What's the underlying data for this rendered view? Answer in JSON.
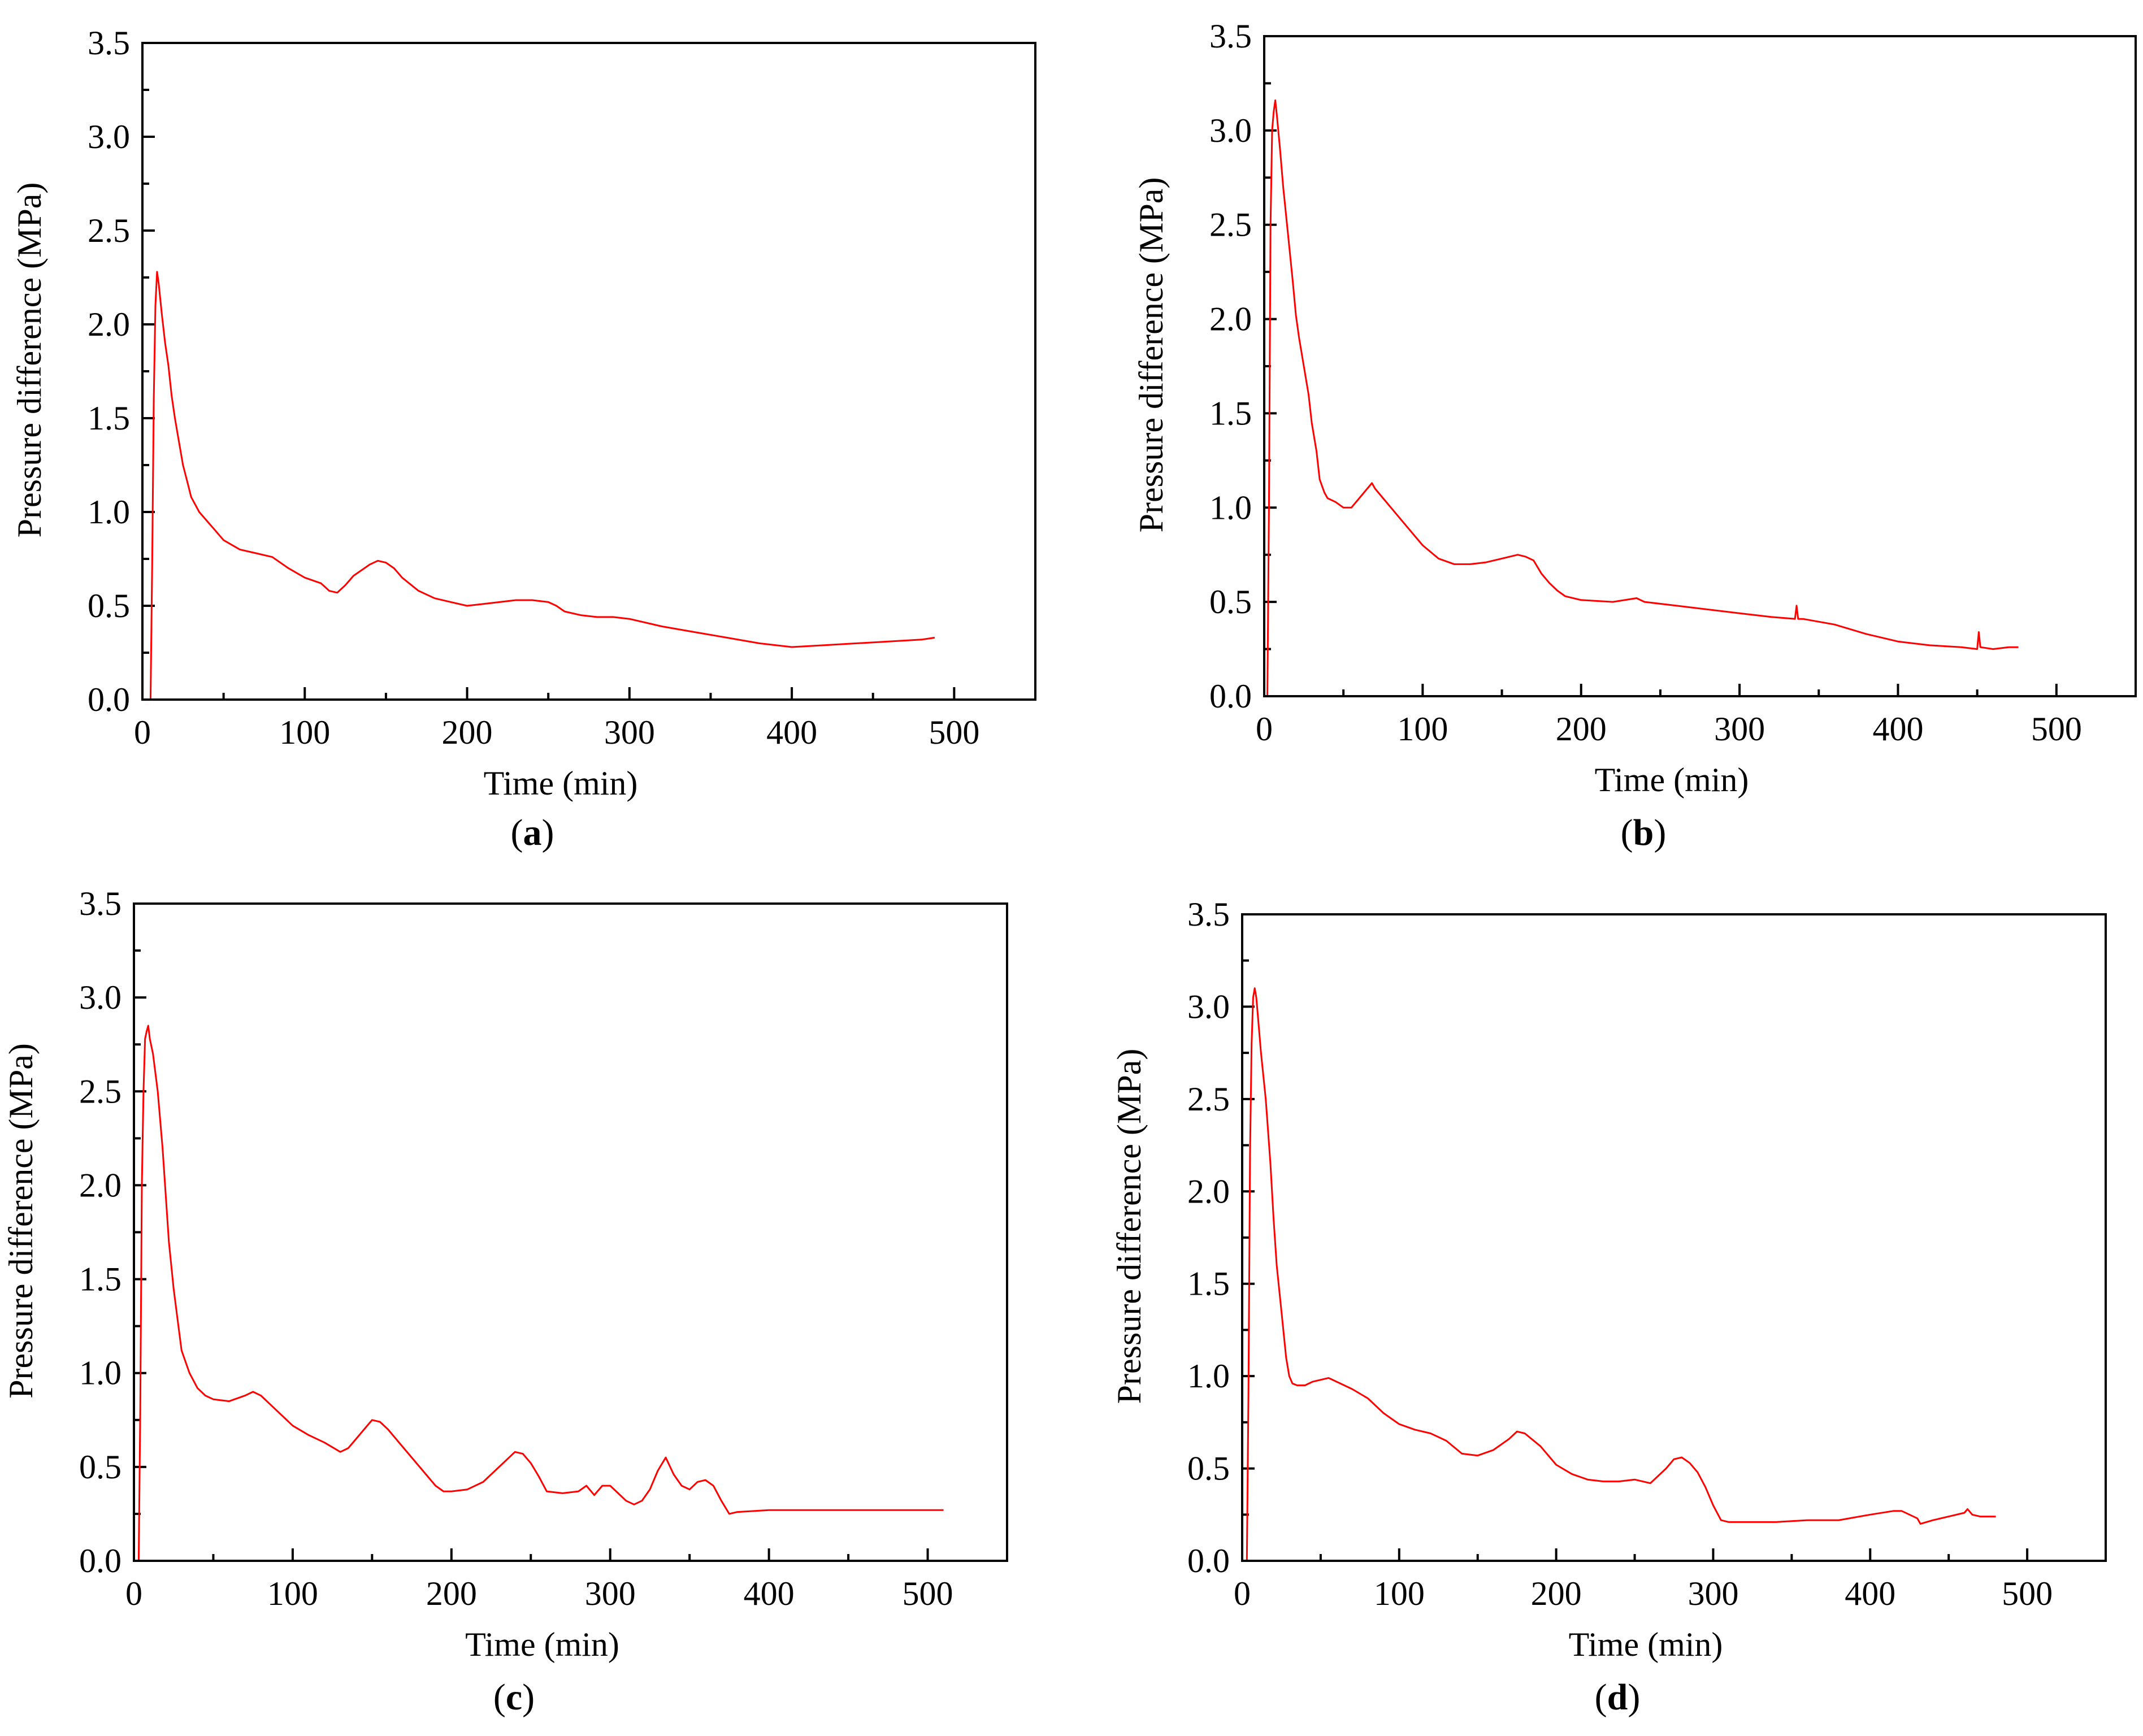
{
  "colors": {
    "series": "#ff0000",
    "axis": "#000000",
    "background": "#ffffff"
  },
  "chart_data": [
    {
      "type": "line",
      "panel_label": "a",
      "xlabel": "Time (min)",
      "ylabel": "Pressure difference (MPa)",
      "xlim": [
        0,
        550
      ],
      "ylim": [
        0,
        3.5
      ],
      "xticks": [
        0,
        100,
        200,
        300,
        400,
        500
      ],
      "yticks": [
        0.0,
        0.5,
        1.0,
        1.5,
        2.0,
        2.5,
        3.0,
        3.5
      ],
      "xtick_labels": [
        "0",
        "100",
        "200",
        "300",
        "400",
        "500"
      ],
      "ytick_labels": [
        "0.0",
        "0.5",
        "1.0",
        "1.5",
        "2.0",
        "2.5",
        "3.0",
        "3.5"
      ],
      "series": [
        {
          "name": "Pressure difference",
          "x": [
            5,
            6,
            7,
            8,
            9,
            10,
            12,
            14,
            16,
            18,
            20,
            22,
            25,
            28,
            30,
            35,
            40,
            45,
            50,
            60,
            70,
            80,
            90,
            100,
            110,
            115,
            120,
            125,
            130,
            140,
            145,
            150,
            155,
            160,
            170,
            180,
            190,
            200,
            210,
            220,
            230,
            240,
            250,
            255,
            260,
            270,
            280,
            290,
            300,
            320,
            340,
            360,
            380,
            400,
            420,
            440,
            460,
            480,
            488
          ],
          "y": [
            0.0,
            0.7,
            1.6,
            2.1,
            2.28,
            2.22,
            2.05,
            1.9,
            1.78,
            1.62,
            1.5,
            1.4,
            1.25,
            1.15,
            1.08,
            1.0,
            0.95,
            0.9,
            0.85,
            0.8,
            0.78,
            0.76,
            0.7,
            0.65,
            0.62,
            0.58,
            0.57,
            0.61,
            0.66,
            0.72,
            0.74,
            0.73,
            0.7,
            0.65,
            0.58,
            0.54,
            0.52,
            0.5,
            0.51,
            0.52,
            0.53,
            0.53,
            0.52,
            0.5,
            0.47,
            0.45,
            0.44,
            0.44,
            0.43,
            0.39,
            0.36,
            0.33,
            0.3,
            0.28,
            0.29,
            0.3,
            0.31,
            0.32,
            0.33
          ]
        }
      ]
    },
    {
      "type": "line",
      "panel_label": "b",
      "xlabel": "Time (min)",
      "ylabel": "Pressure difference (MPa)",
      "xlim": [
        0,
        550
      ],
      "ylim": [
        0,
        3.5
      ],
      "xticks": [
        0,
        100,
        200,
        300,
        400,
        500
      ],
      "yticks": [
        0.0,
        0.5,
        1.0,
        1.5,
        2.0,
        2.5,
        3.0,
        3.5
      ],
      "xtick_labels": [
        "0",
        "100",
        "200",
        "300",
        "400",
        "500"
      ],
      "ytick_labels": [
        "0.0",
        "0.5",
        "1.0",
        "1.5",
        "2.0",
        "2.5",
        "3.0",
        "3.5"
      ],
      "series": [
        {
          "name": "Pressure difference",
          "x": [
            2,
            3,
            4,
            5,
            6,
            7,
            8,
            10,
            12,
            15,
            18,
            20,
            22,
            25,
            28,
            30,
            33,
            35,
            38,
            40,
            45,
            50,
            55,
            60,
            65,
            68,
            70,
            75,
            80,
            90,
            100,
            110,
            120,
            130,
            140,
            150,
            160,
            165,
            170,
            175,
            180,
            185,
            190,
            200,
            220,
            235,
            240,
            260,
            280,
            300,
            320,
            335,
            336,
            337,
            340,
            360,
            380,
            400,
            420,
            440,
            450,
            451,
            452,
            460,
            470,
            476
          ],
          "y": [
            0.0,
            1.0,
            2.5,
            3.0,
            3.1,
            3.16,
            3.08,
            2.9,
            2.7,
            2.45,
            2.2,
            2.02,
            1.9,
            1.75,
            1.6,
            1.45,
            1.3,
            1.15,
            1.08,
            1.05,
            1.03,
            1.0,
            1.0,
            1.05,
            1.1,
            1.13,
            1.1,
            1.05,
            1.0,
            0.9,
            0.8,
            0.73,
            0.7,
            0.7,
            0.71,
            0.73,
            0.75,
            0.74,
            0.72,
            0.65,
            0.6,
            0.56,
            0.53,
            0.51,
            0.5,
            0.52,
            0.5,
            0.48,
            0.46,
            0.44,
            0.42,
            0.41,
            0.48,
            0.41,
            0.41,
            0.38,
            0.33,
            0.29,
            0.27,
            0.26,
            0.25,
            0.34,
            0.26,
            0.25,
            0.26,
            0.26
          ]
        }
      ]
    },
    {
      "type": "line",
      "panel_label": "c",
      "xlabel": "Time (min)",
      "ylabel": "Pressure difference (MPa)",
      "xlim": [
        0,
        550
      ],
      "ylim": [
        0,
        3.5
      ],
      "xticks": [
        0,
        100,
        200,
        300,
        400,
        500
      ],
      "yticks": [
        0.0,
        0.5,
        1.0,
        1.5,
        2.0,
        2.5,
        3.0,
        3.5
      ],
      "xtick_labels": [
        "0",
        "100",
        "200",
        "300",
        "400",
        "500"
      ],
      "ytick_labels": [
        "0.0",
        "0.5",
        "1.0",
        "1.5",
        "2.0",
        "2.5",
        "3.0",
        "3.5"
      ],
      "series": [
        {
          "name": "Pressure difference",
          "x": [
            3,
            4,
            5,
            6,
            7,
            8,
            9,
            10,
            12,
            15,
            18,
            20,
            22,
            25,
            28,
            30,
            35,
            40,
            45,
            50,
            60,
            70,
            75,
            80,
            90,
            100,
            110,
            120,
            130,
            135,
            140,
            145,
            150,
            155,
            160,
            170,
            180,
            190,
            195,
            200,
            210,
            220,
            230,
            240,
            245,
            250,
            255,
            260,
            270,
            280,
            285,
            290,
            295,
            300,
            305,
            310,
            315,
            320,
            325,
            330,
            335,
            340,
            345,
            350,
            355,
            360,
            365,
            370,
            375,
            380,
            400,
            420,
            440,
            460,
            480,
            500,
            510
          ],
          "y": [
            0.0,
            0.8,
            2.0,
            2.5,
            2.78,
            2.82,
            2.85,
            2.78,
            2.7,
            2.5,
            2.2,
            1.95,
            1.7,
            1.45,
            1.25,
            1.12,
            1.0,
            0.92,
            0.88,
            0.86,
            0.85,
            0.88,
            0.9,
            0.88,
            0.8,
            0.72,
            0.67,
            0.63,
            0.58,
            0.6,
            0.65,
            0.7,
            0.75,
            0.74,
            0.7,
            0.6,
            0.5,
            0.4,
            0.37,
            0.37,
            0.38,
            0.42,
            0.5,
            0.58,
            0.57,
            0.52,
            0.45,
            0.37,
            0.36,
            0.37,
            0.4,
            0.35,
            0.4,
            0.4,
            0.36,
            0.32,
            0.3,
            0.32,
            0.38,
            0.48,
            0.55,
            0.46,
            0.4,
            0.38,
            0.42,
            0.43,
            0.4,
            0.32,
            0.25,
            0.26,
            0.27,
            0.27,
            0.27,
            0.27,
            0.27,
            0.27,
            0.27
          ]
        }
      ]
    },
    {
      "type": "line",
      "panel_label": "d",
      "xlabel": "Time (min)",
      "ylabel": "Pressure difference (MPa)",
      "xlim": [
        0,
        550
      ],
      "ylim": [
        0,
        3.5
      ],
      "xticks": [
        0,
        100,
        200,
        300,
        400,
        500
      ],
      "yticks": [
        0.0,
        0.5,
        1.0,
        1.5,
        2.0,
        2.5,
        3.0,
        3.5
      ],
      "xtick_labels": [
        "0",
        "100",
        "200",
        "300",
        "400",
        "500"
      ],
      "ytick_labels": [
        "0.0",
        "0.5",
        "1.0",
        "1.5",
        "2.0",
        "2.5",
        "3.0",
        "3.5"
      ],
      "series": [
        {
          "name": "Pressure difference",
          "x": [
            3,
            4,
            5,
            6,
            7,
            8,
            9,
            10,
            12,
            15,
            18,
            20,
            22,
            25,
            28,
            30,
            32,
            35,
            40,
            45,
            50,
            55,
            60,
            70,
            80,
            90,
            100,
            110,
            120,
            130,
            140,
            150,
            160,
            170,
            175,
            180,
            190,
            200,
            210,
            220,
            230,
            240,
            250,
            260,
            270,
            275,
            280,
            285,
            290,
            295,
            300,
            305,
            310,
            320,
            340,
            360,
            380,
            400,
            415,
            420,
            430,
            432,
            440,
            450,
            460,
            462,
            465,
            470,
            480
          ],
          "y": [
            0.0,
            0.9,
            2.2,
            2.8,
            3.05,
            3.1,
            3.05,
            2.95,
            2.75,
            2.5,
            2.15,
            1.85,
            1.6,
            1.35,
            1.1,
            1.0,
            0.96,
            0.95,
            0.95,
            0.97,
            0.98,
            0.99,
            0.97,
            0.93,
            0.88,
            0.8,
            0.74,
            0.71,
            0.69,
            0.65,
            0.58,
            0.57,
            0.6,
            0.66,
            0.7,
            0.69,
            0.62,
            0.52,
            0.47,
            0.44,
            0.43,
            0.43,
            0.44,
            0.42,
            0.5,
            0.55,
            0.56,
            0.53,
            0.48,
            0.4,
            0.3,
            0.22,
            0.21,
            0.21,
            0.21,
            0.22,
            0.22,
            0.25,
            0.27,
            0.27,
            0.23,
            0.2,
            0.22,
            0.24,
            0.26,
            0.28,
            0.25,
            0.24,
            0.24
          ]
        }
      ]
    }
  ]
}
